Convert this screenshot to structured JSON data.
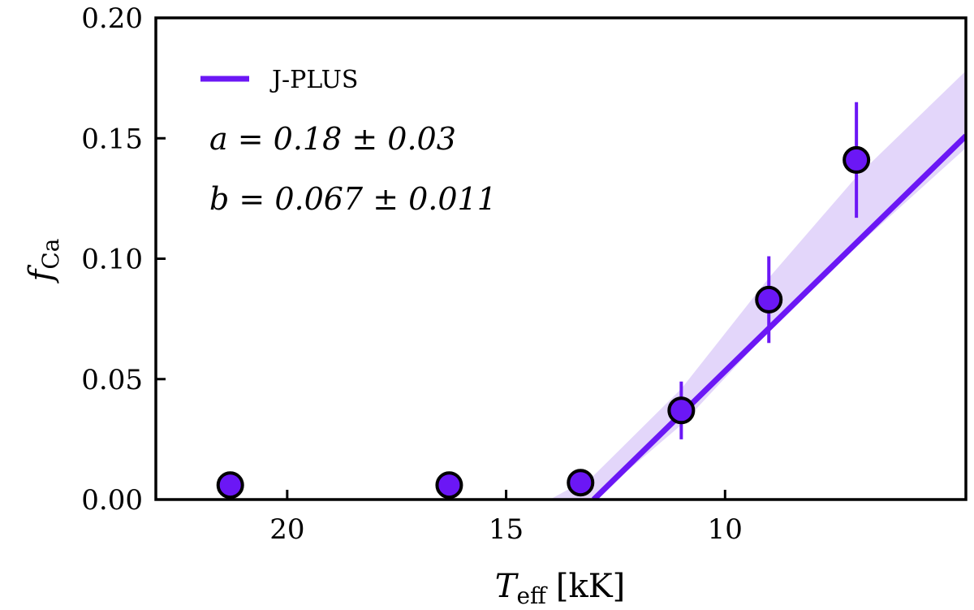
{
  "chart_data": {
    "type": "scatter",
    "xlabel": "T_eff [kK]",
    "xlabel_main": "T",
    "xlabel_sub": "eff",
    "xlabel_unit": "[kK]",
    "ylabel": "f_Ca",
    "ylabel_main": "f",
    "ylabel_sub": "Ca",
    "xlim": [
      23.0,
      4.5
    ],
    "ylim": [
      0.0,
      0.2
    ],
    "x_inverted": true,
    "xticks": [
      20,
      15,
      10
    ],
    "xtick_labels": [
      "20",
      "15",
      "10"
    ],
    "yticks": [
      0.0,
      0.05,
      0.1,
      0.15,
      0.2
    ],
    "ytick_labels": [
      "0.00",
      "0.05",
      "0.10",
      "0.15",
      "0.20"
    ],
    "grid": false,
    "legend_position": "top-left",
    "legend": [
      {
        "label": "J-PLUS",
        "color": "#6B17F5"
      }
    ],
    "annotations": [
      "a = 0.18 ± 0.03",
      "b = 0.067 ± 0.011"
    ],
    "points": [
      {
        "x": 21.3,
        "y": 0.006,
        "yerr": null
      },
      {
        "x": 16.3,
        "y": 0.006,
        "yerr": null
      },
      {
        "x": 13.3,
        "y": 0.007,
        "yerr": null
      },
      {
        "x": 11.0,
        "y": 0.037,
        "yerr": 0.012
      },
      {
        "x": 9.0,
        "y": 0.083,
        "yerr": 0.018
      },
      {
        "x": 7.0,
        "y": 0.141,
        "yerr": 0.024
      }
    ],
    "fit_line": {
      "name": "J-PLUS",
      "x": [
        13.0,
        4.5
      ],
      "y": [
        0.0,
        0.151
      ]
    },
    "fit_band": {
      "x": [
        14.0,
        13.0,
        11.0,
        9.0,
        7.0,
        4.5
      ],
      "lower": [
        0.0,
        0.0,
        0.031,
        0.07,
        0.105,
        0.146
      ],
      "upper": [
        0.0,
        0.01,
        0.046,
        0.092,
        0.134,
        0.178
      ]
    },
    "colors": {
      "series": "#6B17F5",
      "band": "#D9C8F8",
      "marker_edge": "#000000"
    }
  }
}
